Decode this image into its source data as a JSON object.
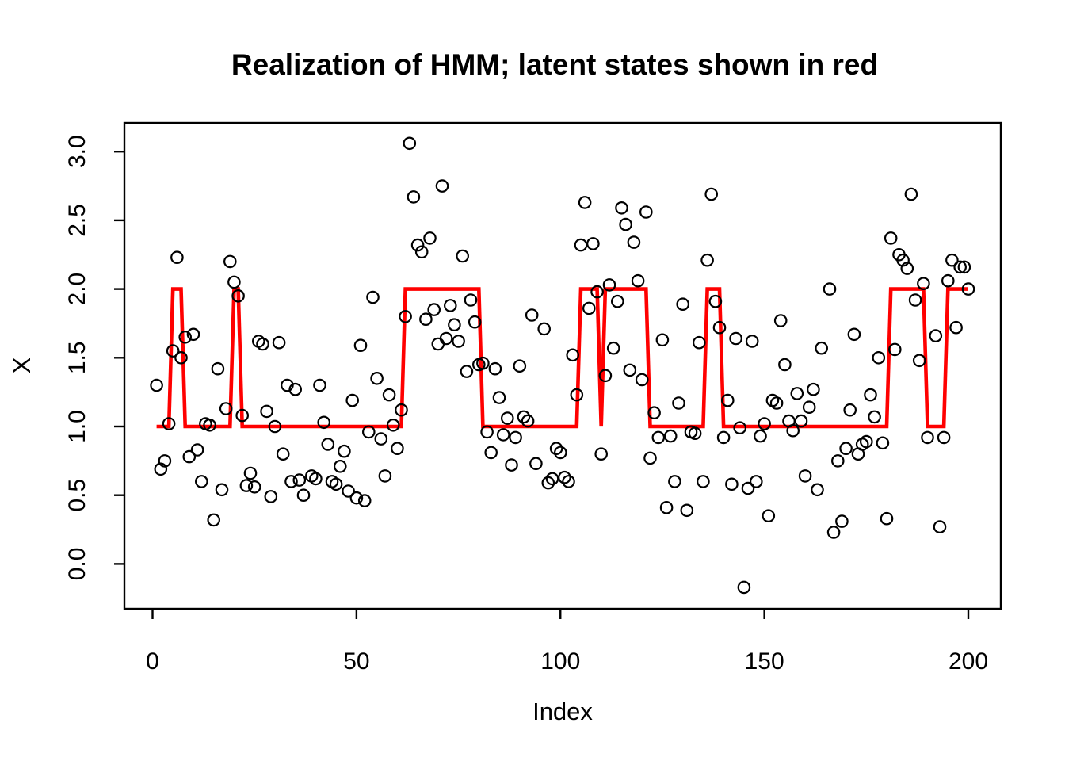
{
  "title": "Realization of HMM; latent states shown in red",
  "chart_data": {
    "type": "scatter",
    "title": "Realization of HMM; latent states shown in red",
    "xlabel": "Index",
    "ylabel": "X",
    "x_ticks": [
      0,
      50,
      100,
      150,
      200
    ],
    "y_tick_labels": [
      "0.0",
      "0.5",
      "1.0",
      "1.5",
      "2.0",
      "2.5",
      "3.0"
    ],
    "y_tick_values": [
      0.0,
      0.5,
      1.0,
      1.5,
      2.0,
      2.5,
      3.0
    ],
    "xlim": [
      -7,
      208
    ],
    "ylim": [
      -0.33,
      3.21
    ],
    "grid": false,
    "legend_position": "none",
    "colors": {
      "observations": "#000000",
      "latent_states": "#FF0000"
    },
    "series": [
      {
        "name": "observations",
        "type": "points",
        "marker": "open-circle",
        "color": "#000000",
        "points": [
          [
            1,
            1.3
          ],
          [
            2,
            0.69
          ],
          [
            3,
            0.75
          ],
          [
            4,
            1.02
          ],
          [
            5,
            1.55
          ],
          [
            6,
            2.23
          ],
          [
            7,
            1.5
          ],
          [
            8,
            1.65
          ],
          [
            9,
            0.78
          ],
          [
            10,
            1.67
          ],
          [
            11,
            0.83
          ],
          [
            12,
            0.6
          ],
          [
            13,
            1.02
          ],
          [
            14,
            1.01
          ],
          [
            15,
            0.32
          ],
          [
            16,
            1.42
          ],
          [
            17,
            0.54
          ],
          [
            18,
            1.13
          ],
          [
            19,
            2.2
          ],
          [
            20,
            2.05
          ],
          [
            21,
            1.95
          ],
          [
            22,
            1.08
          ],
          [
            23,
            0.57
          ],
          [
            24,
            0.66
          ],
          [
            25,
            0.56
          ],
          [
            26,
            1.62
          ],
          [
            27,
            1.6
          ],
          [
            28,
            1.11
          ],
          [
            29,
            0.49
          ],
          [
            30,
            1.0
          ],
          [
            31,
            1.61
          ],
          [
            32,
            0.8
          ],
          [
            33,
            1.3
          ],
          [
            34,
            0.6
          ],
          [
            35,
            1.27
          ],
          [
            36,
            0.61
          ],
          [
            37,
            0.5
          ],
          [
            39,
            0.64
          ],
          [
            40,
            0.62
          ],
          [
            41,
            1.3
          ],
          [
            42,
            1.03
          ],
          [
            43,
            0.87
          ],
          [
            44,
            0.6
          ],
          [
            45,
            0.58
          ],
          [
            46,
            0.71
          ],
          [
            47,
            0.82
          ],
          [
            48,
            0.53
          ],
          [
            49,
            1.19
          ],
          [
            50,
            0.48
          ],
          [
            51,
            1.59
          ],
          [
            52,
            0.46
          ],
          [
            53,
            0.96
          ],
          [
            54,
            1.94
          ],
          [
            55,
            1.35
          ],
          [
            56,
            0.91
          ],
          [
            57,
            0.64
          ],
          [
            58,
            1.23
          ],
          [
            59,
            1.01
          ],
          [
            60,
            0.84
          ],
          [
            61,
            1.12
          ],
          [
            62,
            1.8
          ],
          [
            63,
            3.06
          ],
          [
            64,
            2.67
          ],
          [
            65,
            2.32
          ],
          [
            66,
            2.27
          ],
          [
            67,
            1.78
          ],
          [
            68,
            2.37
          ],
          [
            69,
            1.85
          ],
          [
            70,
            1.6
          ],
          [
            71,
            2.75
          ],
          [
            72,
            1.64
          ],
          [
            73,
            1.88
          ],
          [
            74,
            1.74
          ],
          [
            75,
            1.62
          ],
          [
            76,
            2.24
          ],
          [
            77,
            1.4
          ],
          [
            78,
            1.92
          ],
          [
            79,
            1.76
          ],
          [
            80,
            1.45
          ],
          [
            81,
            1.46
          ],
          [
            82,
            0.96
          ],
          [
            83,
            0.81
          ],
          [
            84,
            1.42
          ],
          [
            85,
            1.21
          ],
          [
            86,
            0.94
          ],
          [
            87,
            1.06
          ],
          [
            88,
            0.72
          ],
          [
            89,
            0.92
          ],
          [
            90,
            1.44
          ],
          [
            91,
            1.07
          ],
          [
            92,
            1.04
          ],
          [
            93,
            1.81
          ],
          [
            94,
            0.73
          ],
          [
            96,
            1.71
          ],
          [
            97,
            0.59
          ],
          [
            98,
            0.62
          ],
          [
            99,
            0.84
          ],
          [
            100,
            0.81
          ],
          [
            101,
            0.63
          ],
          [
            102,
            0.6
          ],
          [
            103,
            1.52
          ],
          [
            104,
            1.23
          ],
          [
            105,
            2.32
          ],
          [
            106,
            2.63
          ],
          [
            107,
            1.86
          ],
          [
            108,
            2.33
          ],
          [
            109,
            1.98
          ],
          [
            110,
            0.8
          ],
          [
            111,
            1.37
          ],
          [
            112,
            2.03
          ],
          [
            113,
            1.57
          ],
          [
            114,
            1.91
          ],
          [
            115,
            2.59
          ],
          [
            116,
            2.47
          ],
          [
            117,
            1.41
          ],
          [
            118,
            2.34
          ],
          [
            119,
            2.06
          ],
          [
            120,
            1.34
          ],
          [
            121,
            2.56
          ],
          [
            122,
            0.77
          ],
          [
            123,
            1.1
          ],
          [
            124,
            0.92
          ],
          [
            125,
            1.63
          ],
          [
            126,
            0.41
          ],
          [
            127,
            0.93
          ],
          [
            128,
            0.6
          ],
          [
            129,
            1.17
          ],
          [
            130,
            1.89
          ],
          [
            131,
            0.39
          ],
          [
            132,
            0.96
          ],
          [
            133,
            0.95
          ],
          [
            134,
            1.61
          ],
          [
            135,
            0.6
          ],
          [
            136,
            2.21
          ],
          [
            137,
            2.69
          ],
          [
            138,
            1.91
          ],
          [
            139,
            1.72
          ],
          [
            140,
            0.92
          ],
          [
            141,
            1.19
          ],
          [
            142,
            0.58
          ],
          [
            143,
            1.64
          ],
          [
            144,
            0.99
          ],
          [
            145,
            -0.17
          ],
          [
            146,
            0.55
          ],
          [
            147,
            1.62
          ],
          [
            148,
            0.6
          ],
          [
            149,
            0.93
          ],
          [
            150,
            1.02
          ],
          [
            151,
            0.35
          ],
          [
            152,
            1.19
          ],
          [
            153,
            1.17
          ],
          [
            154,
            1.77
          ],
          [
            155,
            1.45
          ],
          [
            156,
            1.04
          ],
          [
            157,
            0.97
          ],
          [
            158,
            1.24
          ],
          [
            159,
            1.04
          ],
          [
            160,
            0.64
          ],
          [
            161,
            1.14
          ],
          [
            162,
            1.27
          ],
          [
            163,
            0.54
          ],
          [
            164,
            1.57
          ],
          [
            166,
            2.0
          ],
          [
            167,
            0.23
          ],
          [
            168,
            0.75
          ],
          [
            169,
            0.31
          ],
          [
            170,
            0.84
          ],
          [
            171,
            1.12
          ],
          [
            172,
            1.67
          ],
          [
            173,
            0.8
          ],
          [
            174,
            0.87
          ],
          [
            175,
            0.89
          ],
          [
            176,
            1.23
          ],
          [
            177,
            1.07
          ],
          [
            178,
            1.5
          ],
          [
            179,
            0.88
          ],
          [
            180,
            0.33
          ],
          [
            181,
            2.37
          ],
          [
            182,
            1.56
          ],
          [
            183,
            2.25
          ],
          [
            184,
            2.21
          ],
          [
            185,
            2.15
          ],
          [
            186,
            2.69
          ],
          [
            187,
            1.92
          ],
          [
            188,
            1.48
          ],
          [
            189,
            2.04
          ],
          [
            190,
            0.92
          ],
          [
            192,
            1.66
          ],
          [
            193,
            0.27
          ],
          [
            194,
            0.92
          ],
          [
            195,
            2.06
          ],
          [
            196,
            2.21
          ],
          [
            197,
            1.72
          ],
          [
            198,
            2.16
          ],
          [
            199,
            2.16
          ],
          [
            200,
            2.0
          ]
        ]
      },
      {
        "name": "latent_states",
        "type": "step_line",
        "color": "#FF0000",
        "state_runs": [
          [
            1,
            4,
            1
          ],
          [
            5,
            7,
            2
          ],
          [
            8,
            19,
            1
          ],
          [
            20,
            21,
            2
          ],
          [
            22,
            61,
            1
          ],
          [
            62,
            80,
            2
          ],
          [
            81,
            104,
            1
          ],
          [
            105,
            109,
            2
          ],
          [
            110,
            110,
            1
          ],
          [
            111,
            121,
            2
          ],
          [
            122,
            135,
            1
          ],
          [
            136,
            139,
            2
          ],
          [
            140,
            180,
            1
          ],
          [
            181,
            189,
            2
          ],
          [
            190,
            194,
            1
          ],
          [
            195,
            200,
            2
          ]
        ]
      }
    ]
  }
}
